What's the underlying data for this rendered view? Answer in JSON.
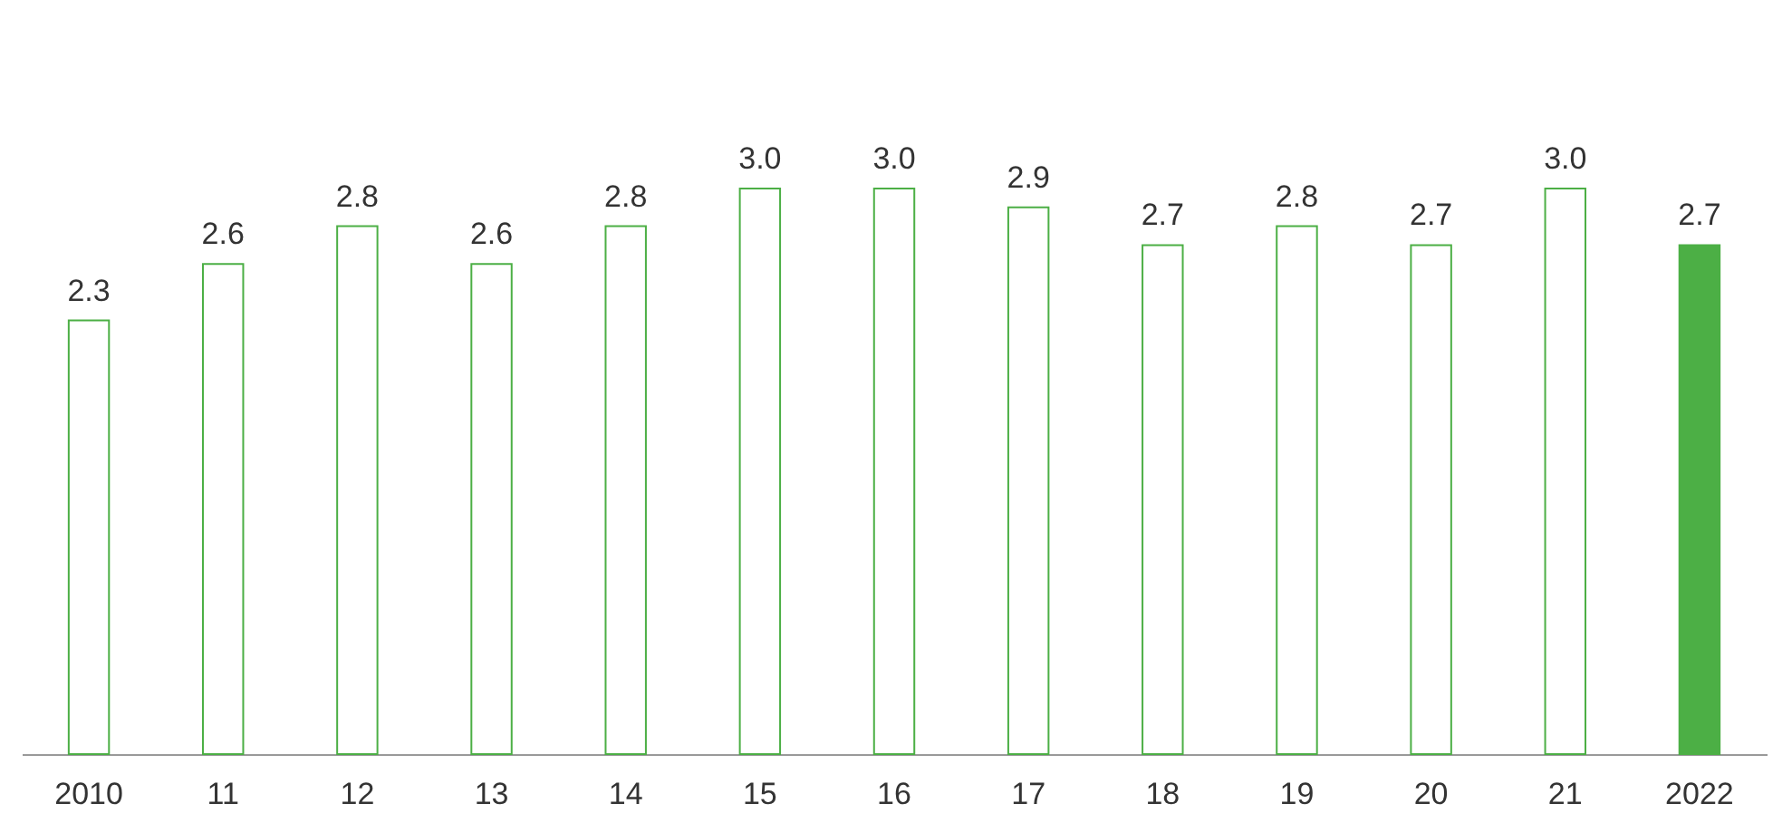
{
  "chart_data": {
    "type": "bar",
    "categories": [
      "2010",
      "11",
      "12",
      "13",
      "14",
      "15",
      "16",
      "17",
      "18",
      "19",
      "20",
      "21",
      "2022"
    ],
    "values": [
      2.3,
      2.6,
      2.8,
      2.6,
      2.8,
      3.0,
      3.0,
      2.9,
      2.7,
      2.8,
      2.7,
      3.0,
      2.7
    ],
    "colors": [
      "#ffffff",
      "#ffffff",
      "#ffffff",
      "#ffffff",
      "#ffffff",
      "#ffffff",
      "#ffffff",
      "#ffffff",
      "#ffffff",
      "#ffffff",
      "#ffffff",
      "#ffffff",
      "#4caf45"
    ],
    "ylim": [
      0,
      4
    ],
    "value_labels": [
      "2.3",
      "2.6",
      "2.8",
      "2.6",
      "2.8",
      "3.0",
      "3.0",
      "2.9",
      "2.7",
      "2.8",
      "2.7",
      "3.0",
      "2.7"
    ],
    "tick_labels": "x",
    "grid": false
  }
}
